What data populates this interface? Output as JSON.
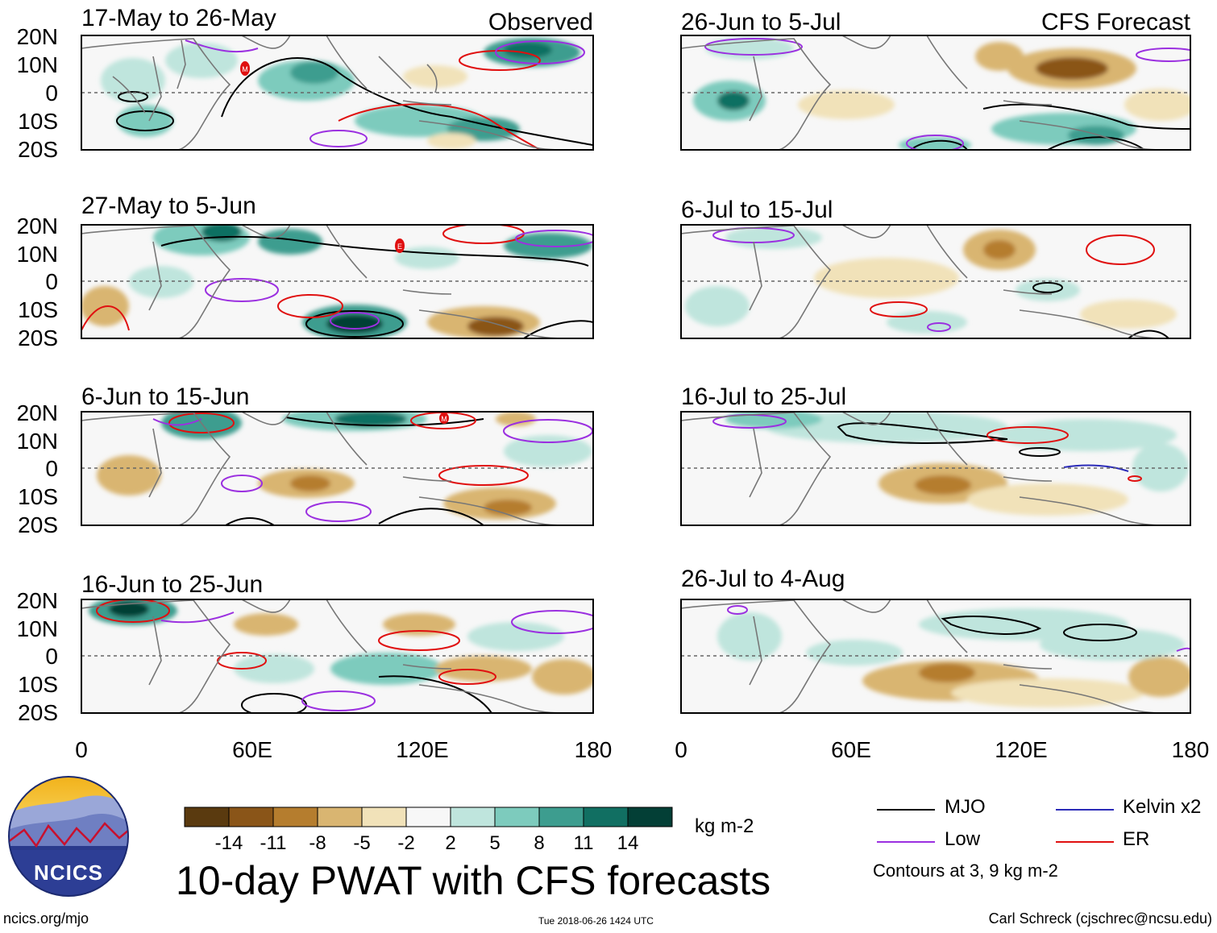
{
  "figure": {
    "title": "10-day PWAT with CFS forecasts",
    "website": "ncics.org/mjo",
    "timestamp": "Tue 2018-06-26 1424 UTC",
    "author": "Carl Schreck (cjschrec@ncsu.edu)",
    "logo_text": "NCICS"
  },
  "column_labels": {
    "observed": "Observed",
    "forecast": "CFS Forecast"
  },
  "axes": {
    "lat_labels": [
      "20N",
      "10N",
      "0",
      "10S",
      "20S"
    ],
    "lon_labels": [
      "0",
      "60E",
      "120E",
      "180"
    ],
    "lon_range": [
      0,
      180
    ],
    "lat_range": [
      -20,
      20
    ]
  },
  "panels": [
    {
      "period": "17-May to 26-May",
      "column": "observed"
    },
    {
      "period": "27-May to 5-Jun",
      "column": "observed"
    },
    {
      "period": "6-Jun to 15-Jun",
      "column": "observed"
    },
    {
      "period": "16-Jun to 25-Jun",
      "column": "observed"
    },
    {
      "period": "26-Jun to 5-Jul",
      "column": "forecast"
    },
    {
      "period": "6-Jul to 15-Jul",
      "column": "forecast"
    },
    {
      "period": "16-Jul to 25-Jul",
      "column": "forecast"
    },
    {
      "period": "26-Jul to 4-Aug",
      "column": "forecast"
    }
  ],
  "colorbar": {
    "units": "kg m-2",
    "tick_labels": [
      "-14",
      "-11",
      "-8",
      "-5",
      "-2",
      "2",
      "5",
      "8",
      "11",
      "14"
    ],
    "colors": [
      "#5a3a0f",
      "#8a5518",
      "#b57d2e",
      "#d9b571",
      "#f1e2b9",
      "#f7f7f7",
      "#bfe5dd",
      "#7dcbbd",
      "#3d9d8f",
      "#116f62",
      "#033f36"
    ]
  },
  "legend": {
    "contour_note": "Contours at 3, 9 kg m-2",
    "items": [
      {
        "label": "MJO",
        "color": "#000000"
      },
      {
        "label": "Kelvin x2",
        "color": "#2b2bb8"
      },
      {
        "label": "Low",
        "color": "#9b30e0"
      },
      {
        "label": "ER",
        "color": "#e01010"
      }
    ]
  }
}
